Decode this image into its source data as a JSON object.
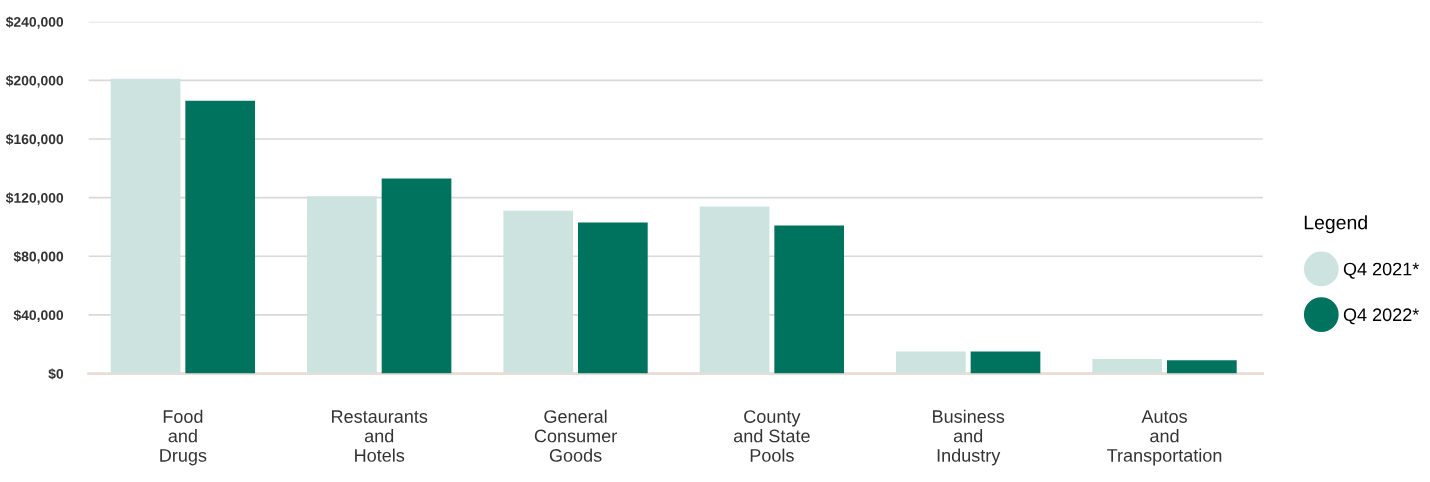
{
  "chart_data": {
    "type": "bar",
    "categories": [
      "Food\nand\nDrugs",
      "Restaurants\nand\nHotels",
      "General\nConsumer\nGoods",
      "County\nand State\nPools",
      "Business\nand\nIndustry",
      "Autos\nand\nTransportation"
    ],
    "series": [
      {
        "name": "Q4 2021*",
        "color": "#cce3df",
        "values": [
          201000,
          121000,
          111000,
          114000,
          15000,
          10000
        ]
      },
      {
        "name": "Q4 2022*",
        "color": "#00735f",
        "values": [
          186000,
          133000,
          103000,
          101000,
          15000,
          9000
        ]
      }
    ],
    "ylim": [
      0,
      240000
    ],
    "yticks": [
      {
        "value": 0,
        "label": "$0"
      },
      {
        "value": 40000,
        "label": "$40,000"
      },
      {
        "value": 80000,
        "label": "$80,000"
      },
      {
        "value": 120000,
        "label": "$120,000"
      },
      {
        "value": 160000,
        "label": "$160,000"
      },
      {
        "value": 200000,
        "label": "$200,000"
      },
      {
        "value": 240000,
        "label": "$240,000"
      }
    ],
    "grid": "y",
    "legend": "right",
    "legend_title": "Legend",
    "marker": "circle"
  }
}
